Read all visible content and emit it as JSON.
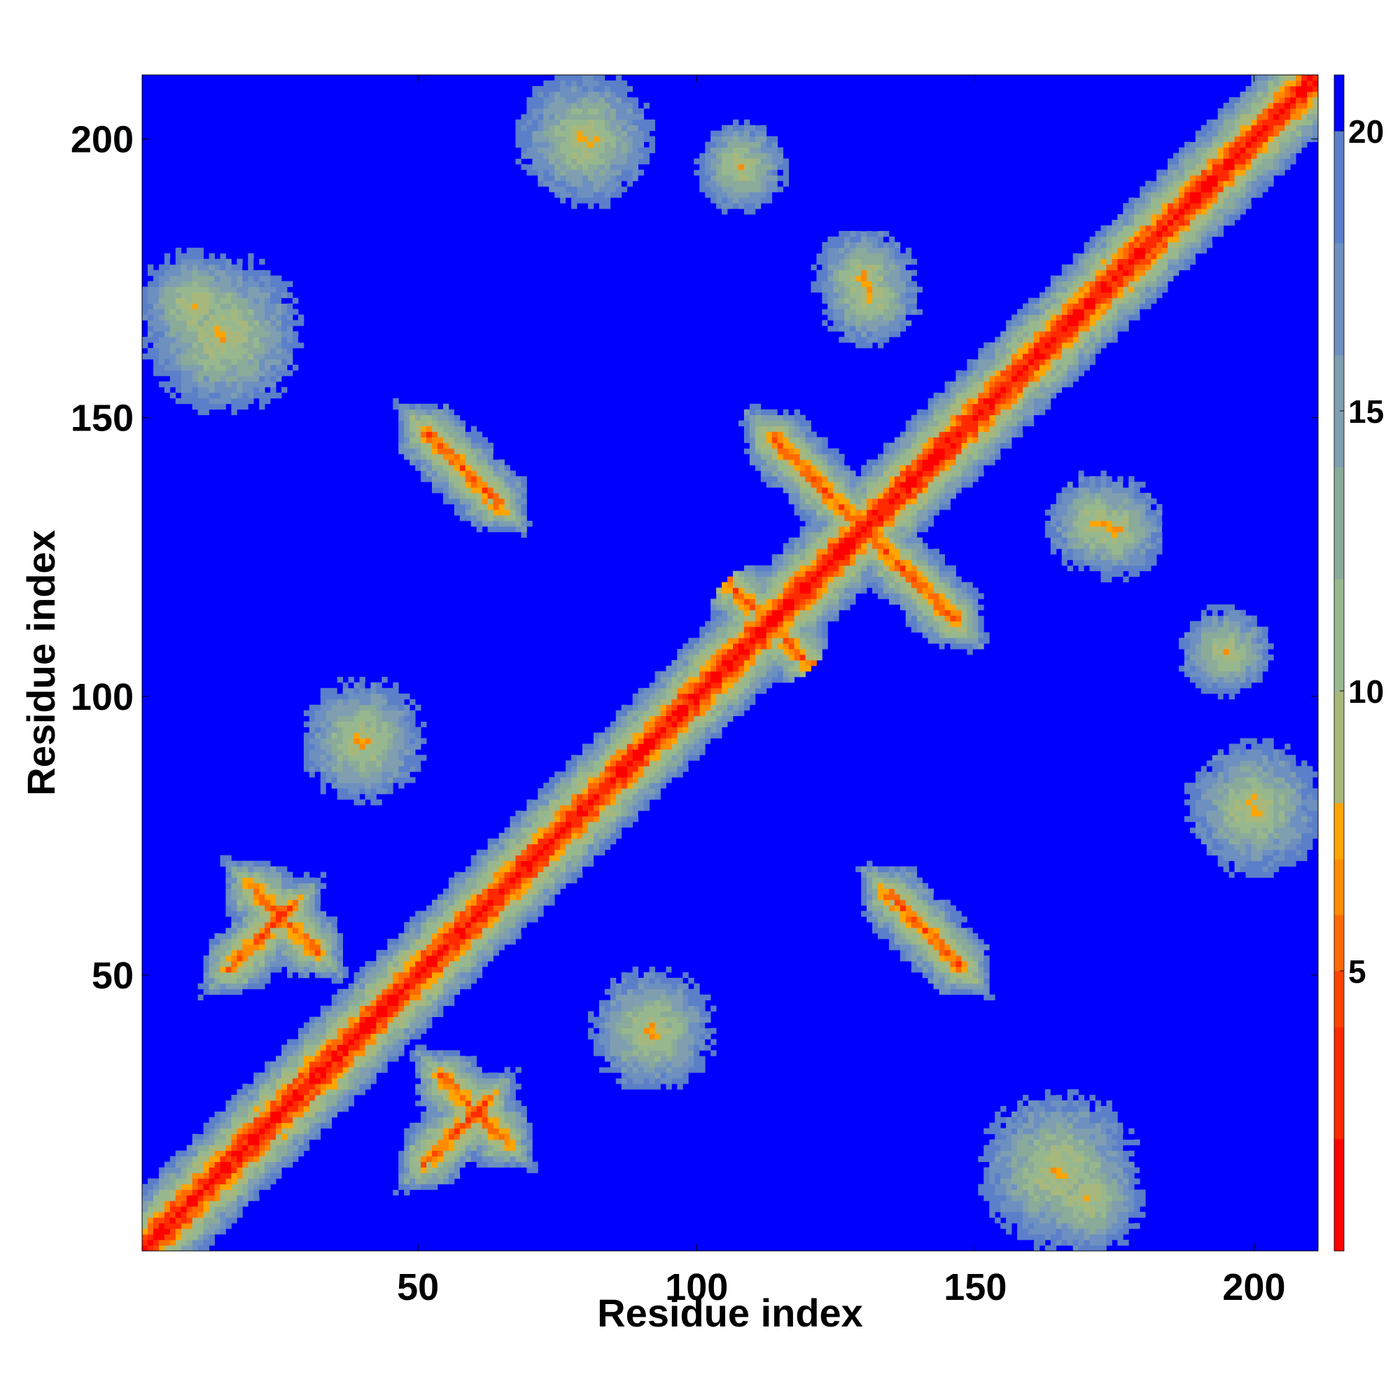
{
  "chart_data": {
    "type": "heatmap",
    "title": "",
    "xlabel": "Residue index",
    "ylabel": "Residue index",
    "n_residues": 211,
    "xlim": [
      1,
      211
    ],
    "ylim": [
      1,
      211
    ],
    "x_ticks": [
      50,
      100,
      150,
      200
    ],
    "y_ticks": [
      50,
      100,
      150,
      200
    ],
    "colorbar": {
      "range": [
        0,
        21
      ],
      "ticks": [
        5,
        10,
        15,
        20
      ],
      "bands": [
        {
          "max": 2,
          "color": "#ff0000"
        },
        {
          "max": 4,
          "color": "#ff2a00"
        },
        {
          "max": 5,
          "color": "#ff4500"
        },
        {
          "max": 6,
          "color": "#ff6a00"
        },
        {
          "max": 7,
          "color": "#ff8c00"
        },
        {
          "max": 8,
          "color": "#ffa500"
        },
        {
          "max": 10,
          "color": "#a8b87c"
        },
        {
          "max": 12,
          "color": "#97b88e"
        },
        {
          "max": 14,
          "color": "#8aab9a"
        },
        {
          "max": 16,
          "color": "#7f9fb0"
        },
        {
          "max": 18,
          "color": "#6d90c0"
        },
        {
          "max": 20,
          "color": "#5b7fc8"
        },
        {
          "max": 21,
          "color": "#0000ff"
        }
      ]
    },
    "contact_features": [
      {
        "kind": "diagonal",
        "from": 1,
        "to": 211
      },
      {
        "kind": "antiparallel",
        "center": [
          58,
          141
        ],
        "span": 6
      },
      {
        "kind": "antiparallel",
        "center": [
          119,
          141
        ],
        "span": 5
      },
      {
        "kind": "antiparallel",
        "center": [
          140,
          119
        ],
        "span": 6
      },
      {
        "kind": "antiparallel",
        "center": [
          141,
          58
        ],
        "span": 6
      },
      {
        "kind": "antiparallel",
        "center": [
          60,
          26
        ],
        "span": 5
      },
      {
        "kind": "antiparallel",
        "center": [
          26,
          60
        ],
        "span": 5
      },
      {
        "kind": "parallel",
        "center": [
          22,
          57
        ],
        "span": 5
      },
      {
        "kind": "parallel",
        "center": [
          57,
          22
        ],
        "span": 5
      },
      {
        "kind": "cross",
        "center": [
          113,
          113
        ],
        "span": 5
      },
      {
        "kind": "cross",
        "center": [
          130,
          130
        ],
        "span": 5
      },
      {
        "kind": "blob",
        "center": [
          172,
          131
        ],
        "radius": 9
      },
      {
        "kind": "blob",
        "center": [
          131,
          172
        ],
        "radius": 9
      },
      {
        "kind": "blob",
        "center": [
          195,
          108
        ],
        "radius": 8
      },
      {
        "kind": "blob",
        "center": [
          108,
          195
        ],
        "radius": 8
      },
      {
        "kind": "blob",
        "center": [
          40,
          92
        ],
        "radius": 11
      },
      {
        "kind": "blob",
        "center": [
          92,
          40
        ],
        "radius": 11
      },
      {
        "kind": "blob",
        "center": [
          10,
          170
        ],
        "radius": 10
      },
      {
        "kind": "blob",
        "center": [
          170,
          10
        ],
        "radius": 10
      },
      {
        "kind": "blob",
        "center": [
          130,
          175
        ],
        "radius": 9
      },
      {
        "kind": "blob",
        "center": [
          80,
          200
        ],
        "radius": 12
      },
      {
        "kind": "blob",
        "center": [
          200,
          80
        ],
        "radius": 12
      },
      {
        "kind": "blob",
        "center": [
          165,
          15
        ],
        "radius": 14
      },
      {
        "kind": "blob",
        "center": [
          15,
          165
        ],
        "radius": 14
      }
    ]
  }
}
